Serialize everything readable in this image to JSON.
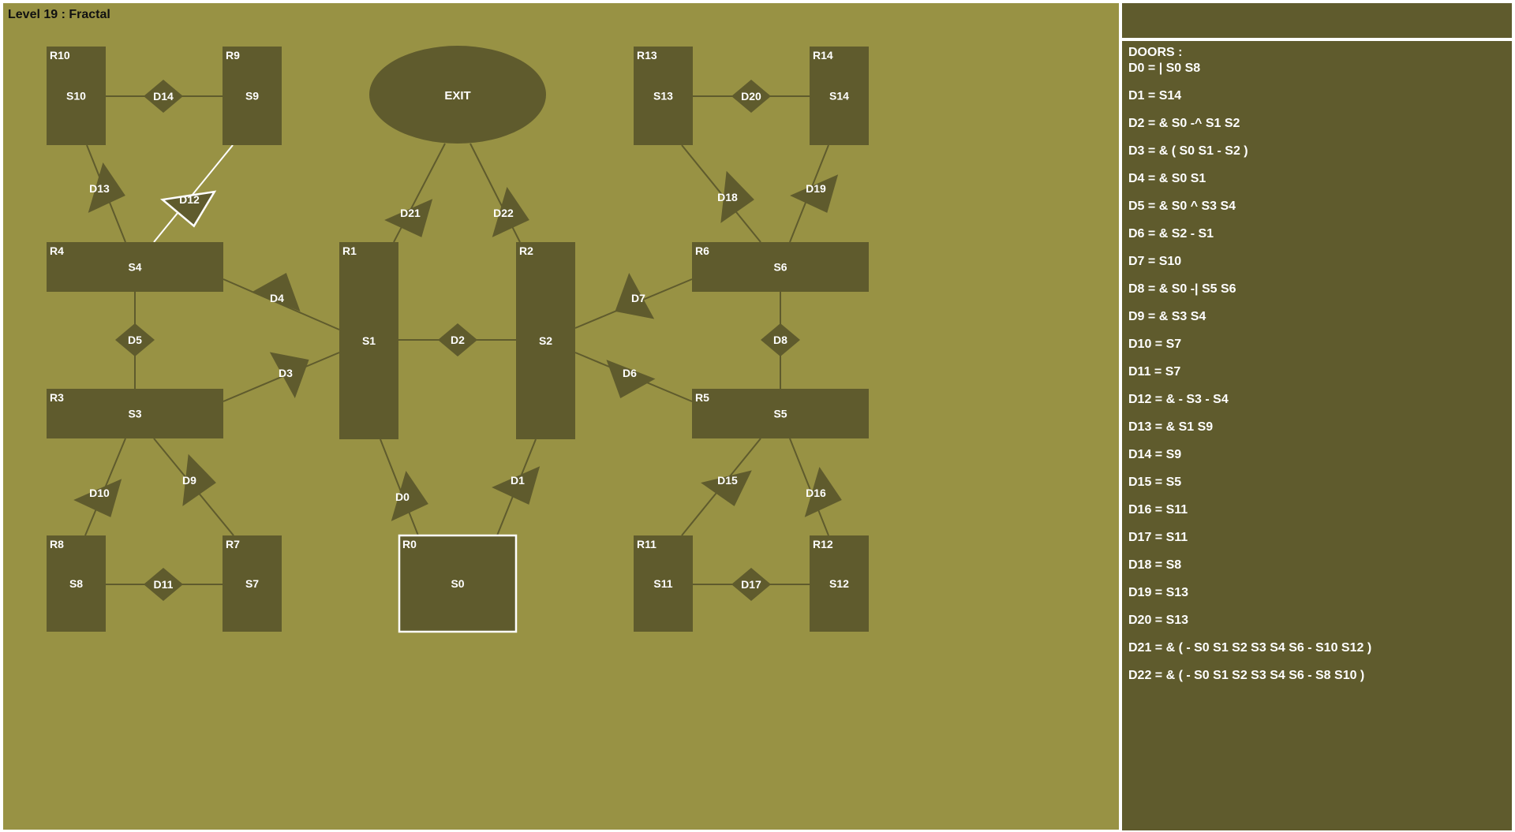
{
  "level_title": "Level 19 : Fractal",
  "colors": {
    "background": "#989244",
    "room": "#5f5b2d",
    "text": "#ffffff",
    "highlight": "#ffffff",
    "line": "#5f5b2d"
  },
  "exit_label": "EXIT",
  "rooms": [
    {
      "id": "R0",
      "switch": "S0",
      "selected": true
    },
    {
      "id": "R1",
      "switch": "S1"
    },
    {
      "id": "R2",
      "switch": "S2"
    },
    {
      "id": "R3",
      "switch": "S3"
    },
    {
      "id": "R4",
      "switch": "S4"
    },
    {
      "id": "R5",
      "switch": "S5"
    },
    {
      "id": "R6",
      "switch": "S6"
    },
    {
      "id": "R7",
      "switch": "S7"
    },
    {
      "id": "R8",
      "switch": "S8"
    },
    {
      "id": "R9",
      "switch": "S9"
    },
    {
      "id": "R10",
      "switch": "S10"
    },
    {
      "id": "R11",
      "switch": "S11"
    },
    {
      "id": "R12",
      "switch": "S12"
    },
    {
      "id": "R13",
      "switch": "S13"
    },
    {
      "id": "R14",
      "switch": "S14"
    }
  ],
  "doors": [
    {
      "label": "D0"
    },
    {
      "label": "D1"
    },
    {
      "label": "D2"
    },
    {
      "label": "D3"
    },
    {
      "label": "D4"
    },
    {
      "label": "D5"
    },
    {
      "label": "D6"
    },
    {
      "label": "D7"
    },
    {
      "label": "D8"
    },
    {
      "label": "D9"
    },
    {
      "label": "D10"
    },
    {
      "label": "D11"
    },
    {
      "label": "D12",
      "highlighted": true
    },
    {
      "label": "D13"
    },
    {
      "label": "D14"
    },
    {
      "label": "D15"
    },
    {
      "label": "D16"
    },
    {
      "label": "D17"
    },
    {
      "label": "D18"
    },
    {
      "label": "D19"
    },
    {
      "label": "D20"
    },
    {
      "label": "D21"
    },
    {
      "label": "D22"
    }
  ],
  "panel": {
    "title": "DOORS :",
    "door_list": [
      "D0 = | S0 S8",
      "D1 = S14",
      "D2 = & S0 -^ S1 S2",
      "D3 = & ( S0 S1 - S2 )",
      "D4 = & S0 S1",
      "D5 = & S0 ^ S3 S4",
      "D6 = & S2 - S1",
      "D7 = S10",
      "D8 = & S0 -| S5 S6",
      "D9 = & S3 S4",
      "D10 = S7",
      "D11 = S7",
      "D12 = & - S3 - S4",
      "D13 = & S1 S9",
      "D14 = S9",
      "D15 = S5",
      "D16 = S11",
      "D17 = S11",
      "D18 = S8",
      "D19 = S13",
      "D20 = S13",
      "D21 = & ( - S0 S1 S2 S3 S4 S6 - S10 S12 )",
      "D22 = & ( - S0 S1 S2 S3 S4 S6 - S8 S10 )"
    ]
  }
}
